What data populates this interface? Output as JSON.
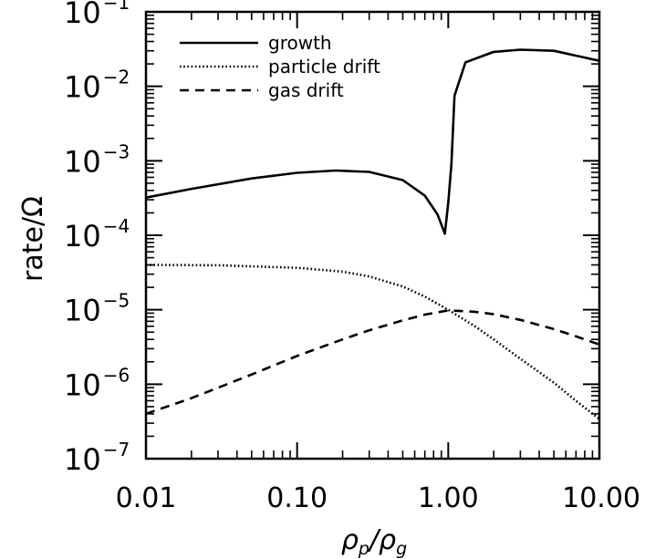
{
  "chart_data": {
    "type": "line",
    "xlabel": {
      "main": "ρ",
      "sub1": "p",
      "sep": "/",
      "main2": "ρ",
      "sub2": "g"
    },
    "ylabel": "rate/Ω",
    "xscale": "log",
    "yscale": "log",
    "xlim": [
      0.01,
      10
    ],
    "ylim": [
      1e-07,
      0.1
    ],
    "xticks": [
      {
        "value": 0.01,
        "label": "0.01"
      },
      {
        "value": 0.1,
        "label": "0.10"
      },
      {
        "value": 1,
        "label": "1.00"
      },
      {
        "value": 10,
        "label": "10.00"
      }
    ],
    "yticks": [
      {
        "value": 1e-07,
        "base": "10",
        "exp": "−7"
      },
      {
        "value": 1e-06,
        "base": "10",
        "exp": "−6"
      },
      {
        "value": 1e-05,
        "base": "10",
        "exp": "−5"
      },
      {
        "value": 0.0001,
        "base": "10",
        "exp": "−4"
      },
      {
        "value": 0.001,
        "base": "10",
        "exp": "−3"
      },
      {
        "value": 0.01,
        "base": "10",
        "exp": "−2"
      },
      {
        "value": 0.1,
        "base": "10",
        "exp": "−1"
      }
    ],
    "legend_position": "top-left",
    "series": [
      {
        "name": "growth",
        "style": "solid",
        "x": [
          0.01,
          0.02,
          0.05,
          0.1,
          0.18,
          0.3,
          0.5,
          0.7,
          0.85,
          0.95,
          1.0,
          1.05,
          1.1,
          1.3,
          2.0,
          3.0,
          5.0,
          10.0
        ],
        "y": [
          0.00032,
          0.00042,
          0.00058,
          0.00069,
          0.00074,
          0.00071,
          0.00055,
          0.00034,
          0.00019,
          0.000105,
          0.00027,
          0.0009,
          0.0075,
          0.021,
          0.029,
          0.031,
          0.03,
          0.022
        ]
      },
      {
        "name": "particle drift",
        "style": "dotted",
        "x": [
          0.01,
          0.03,
          0.1,
          0.2,
          0.3,
          0.5,
          0.7,
          1.0,
          1.5,
          2.0,
          3.0,
          5.0,
          7.0,
          10.0
        ],
        "y": [
          4e-05,
          3.95e-05,
          3.65e-05,
          3.25e-05,
          2.8e-05,
          2.05e-05,
          1.5e-05,
          1e-05,
          6e-06,
          4e-06,
          2.2e-06,
          1.05e-06,
          6e-07,
          3.4e-07
        ]
      },
      {
        "name": "gas drift",
        "style": "dashed",
        "x": [
          0.01,
          0.02,
          0.05,
          0.1,
          0.2,
          0.3,
          0.5,
          0.7,
          1.0,
          1.5,
          2.0,
          3.0,
          5.0,
          7.0,
          10.0
        ],
        "y": [
          4e-07,
          6.5e-07,
          1.35e-06,
          2.4e-06,
          4e-06,
          5.3e-06,
          7.2e-06,
          8.6e-06,
          9.8e-06,
          9.4e-06,
          8.7e-06,
          7.3e-06,
          5.5e-06,
          4.4e-06,
          3.4e-06
        ]
      }
    ]
  }
}
